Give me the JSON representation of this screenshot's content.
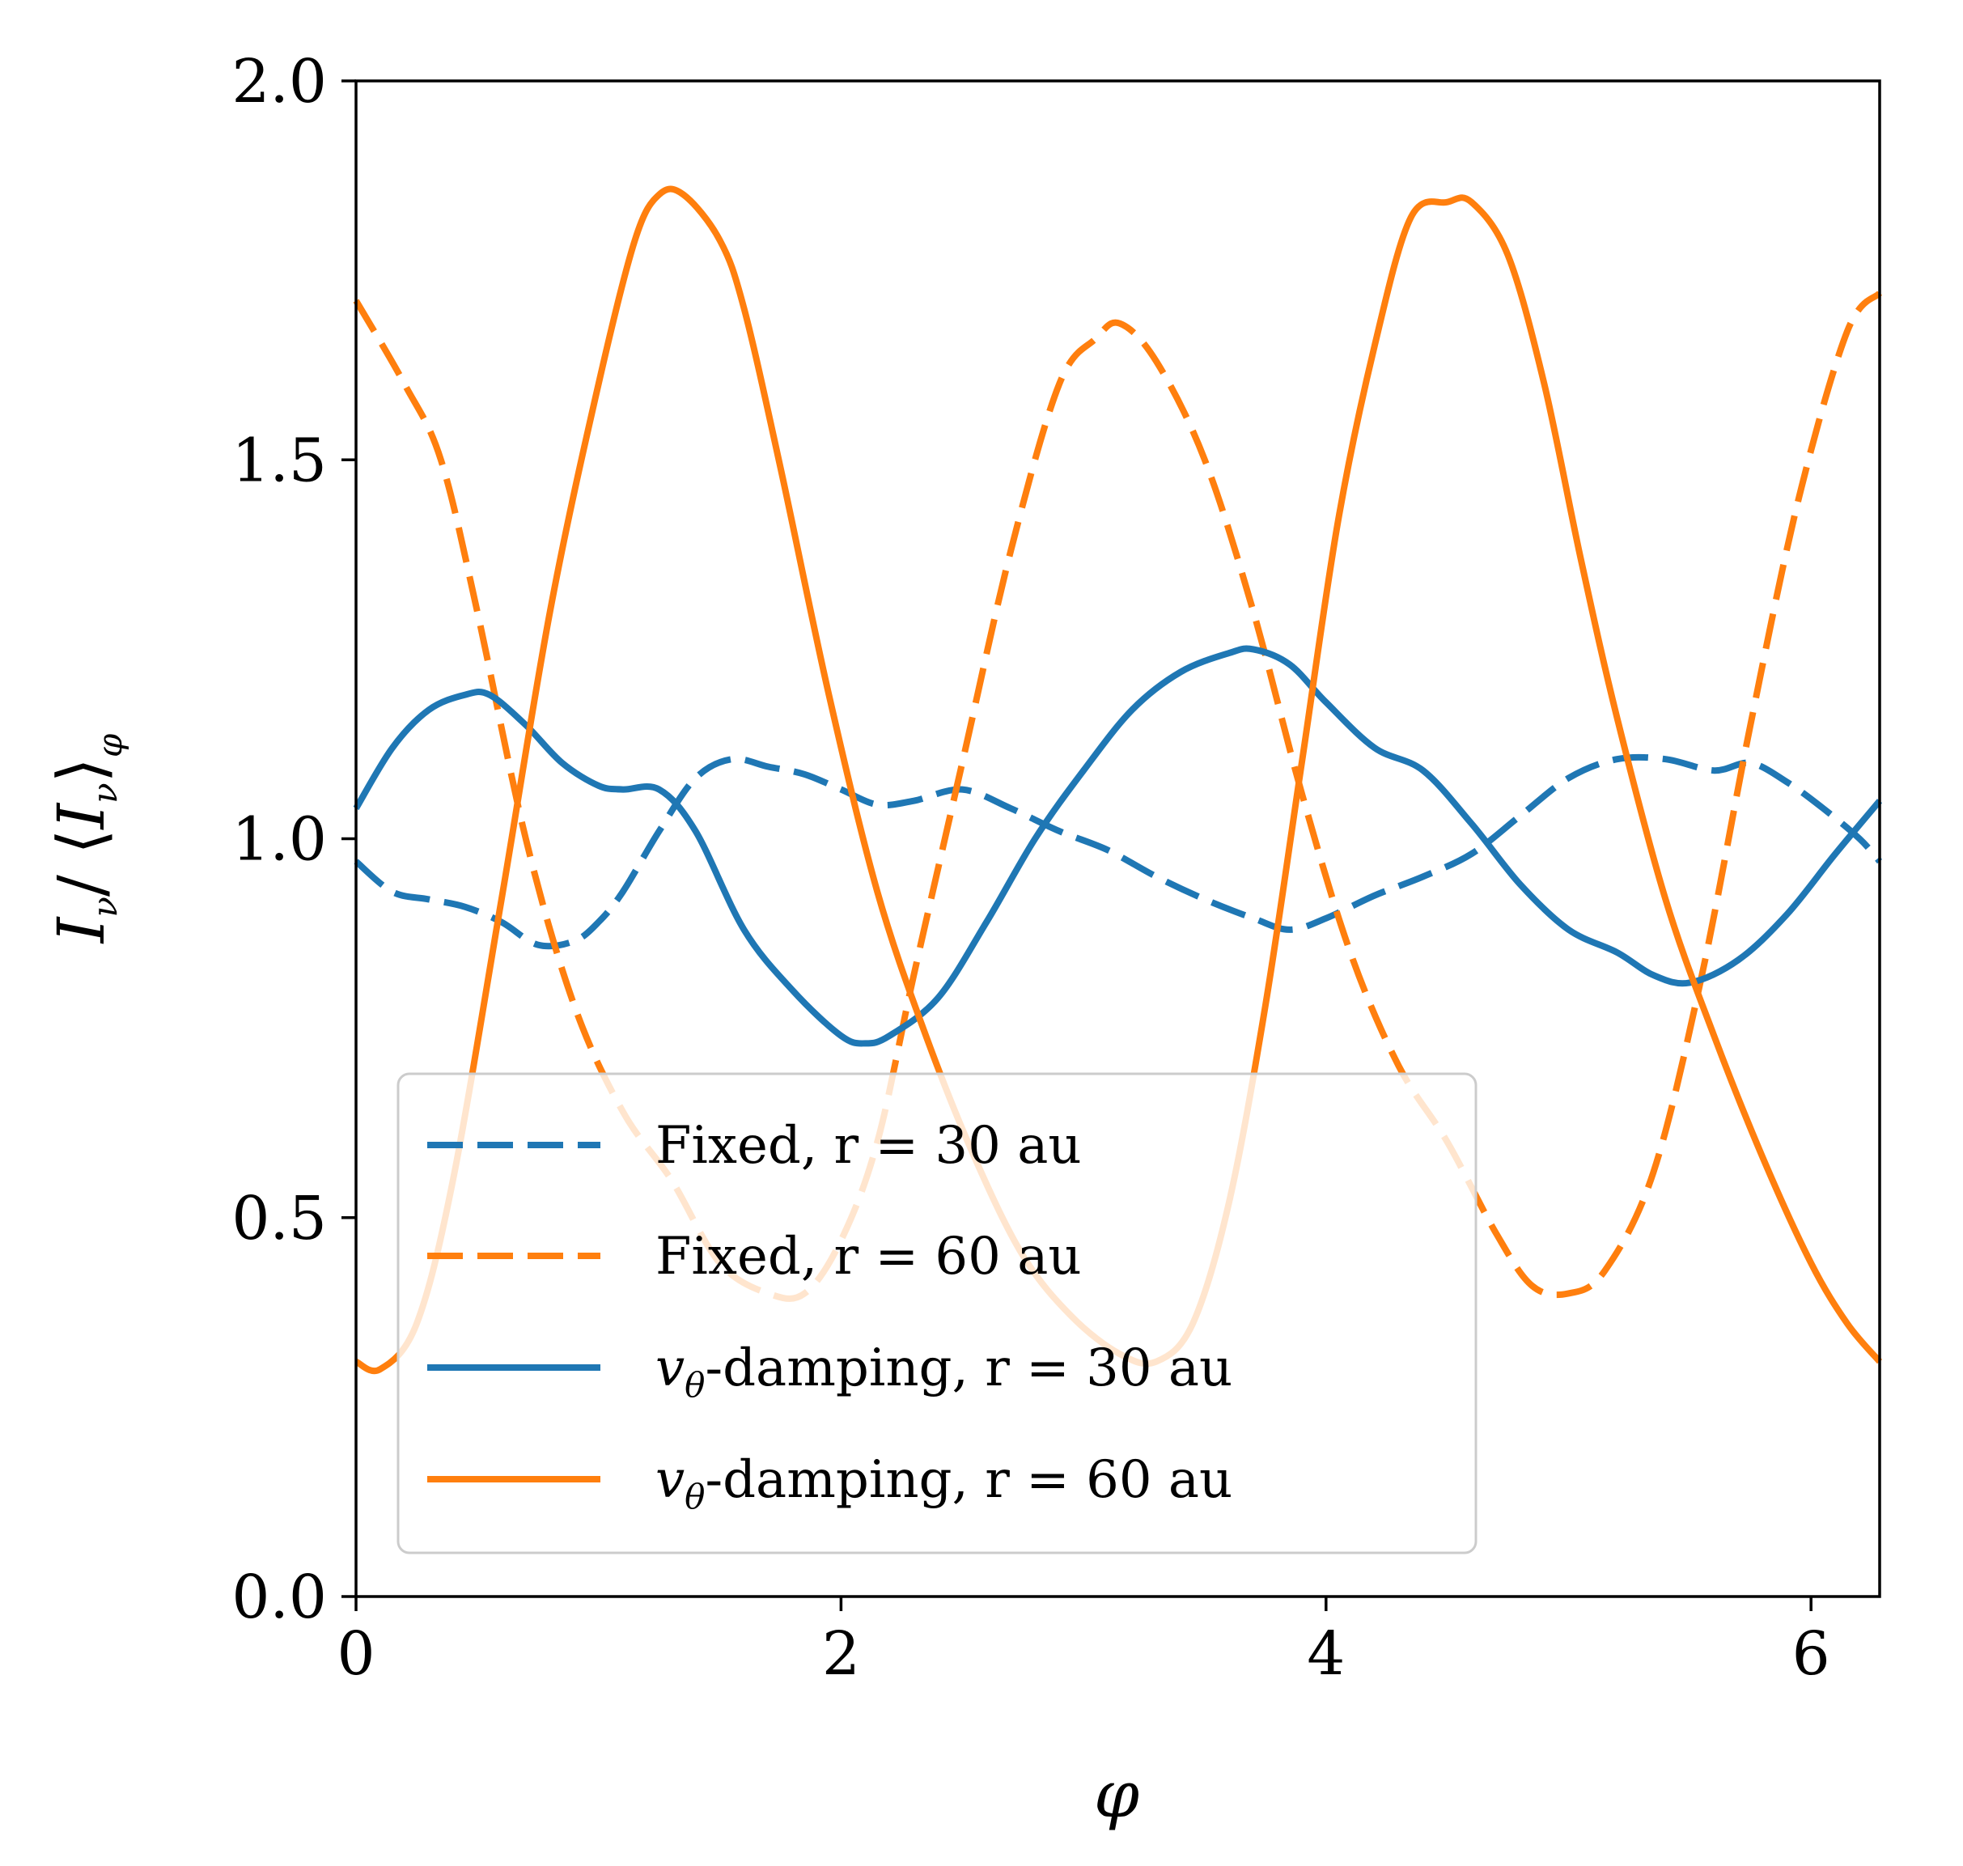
{
  "chart_data": {
    "type": "line",
    "title": "",
    "xlabel": "φ",
    "ylabel": {
      "main": "I",
      "sub": "ν",
      "mid": "/ ⟨",
      "main2": "I",
      "sub2": "ν",
      "close": "⟩",
      "sub3": "φ"
    },
    "xlim": [
      0,
      6.283
    ],
    "ylim": [
      0,
      2.0
    ],
    "xticks": [
      0,
      2,
      4,
      6
    ],
    "xtick_labels": [
      "0",
      "2",
      "4",
      "6"
    ],
    "yticks": [
      0,
      0.5,
      1.0,
      1.5,
      2.0
    ],
    "ytick_labels": [
      "0.0",
      "0.5",
      "1.0",
      "1.5",
      "2.0"
    ],
    "legend_position": "lower-left",
    "series": [
      {
        "name": "Fixed, r = 30 au",
        "legend": {
          "prefix": "Fixed, r = 30 au",
          "var": "",
          "sub": "",
          "suffix": ""
        },
        "color": "#1f77b4",
        "style": "dashed",
        "x": [
          0,
          0.15,
          0.3,
          0.45,
          0.6,
          0.75,
          0.9,
          1.0,
          1.1,
          1.25,
          1.4,
          1.55,
          1.7,
          1.85,
          2.0,
          2.15,
          2.3,
          2.5,
          2.7,
          2.9,
          3.1,
          3.3,
          3.5,
          3.7,
          3.85,
          4.0,
          4.2,
          4.4,
          4.6,
          4.8,
          5.0,
          5.2,
          5.4,
          5.6,
          5.75,
          5.9,
          6.05,
          6.2,
          6.283
        ],
        "y": [
          0.97,
          0.93,
          0.92,
          0.91,
          0.89,
          0.86,
          0.865,
          0.89,
          0.93,
          1.01,
          1.08,
          1.105,
          1.095,
          1.085,
          1.065,
          1.045,
          1.05,
          1.065,
          1.04,
          1.01,
          0.985,
          0.95,
          0.92,
          0.895,
          0.88,
          0.895,
          0.925,
          0.95,
          0.98,
          1.03,
          1.08,
          1.105,
          1.105,
          1.09,
          1.1,
          1.075,
          1.04,
          1.0,
          0.97
        ]
      },
      {
        "name": "Fixed, r = 60 au",
        "legend": {
          "prefix": "Fixed, r = 60 au",
          "var": "",
          "sub": "",
          "suffix": ""
        },
        "color": "#ff7f0e",
        "style": "dashed",
        "x": [
          0,
          0.2,
          0.35,
          0.5,
          0.7,
          0.9,
          1.1,
          1.3,
          1.5,
          1.7,
          1.85,
          2.0,
          2.15,
          2.3,
          2.5,
          2.7,
          2.9,
          3.05,
          3.15,
          3.3,
          3.5,
          3.7,
          3.9,
          4.1,
          4.3,
          4.5,
          4.7,
          4.85,
          5.0,
          5.15,
          5.35,
          5.55,
          5.75,
          5.95,
          6.15,
          6.283
        ],
        "y": [
          1.71,
          1.6,
          1.5,
          1.3,
          1.0,
          0.78,
          0.64,
          0.55,
          0.44,
          0.4,
          0.4,
          0.47,
          0.6,
          0.82,
          1.1,
          1.38,
          1.6,
          1.66,
          1.68,
          1.63,
          1.5,
          1.3,
          1.06,
          0.85,
          0.7,
          0.6,
          0.48,
          0.41,
          0.4,
          0.43,
          0.56,
          0.82,
          1.15,
          1.45,
          1.67,
          1.72
        ]
      },
      {
        "name": "vθ-damping, r = 30 au",
        "legend": {
          "prefix": "",
          "var": "v",
          "sub": "θ",
          "suffix": "-damping, r = 30 au"
        },
        "color": "#1f77b4",
        "style": "solid",
        "x": [
          0,
          0.15,
          0.3,
          0.45,
          0.55,
          0.7,
          0.85,
          1.0,
          1.1,
          1.25,
          1.4,
          1.6,
          1.8,
          2.0,
          2.1,
          2.2,
          2.4,
          2.6,
          2.8,
          3.0,
          3.2,
          3.4,
          3.6,
          3.7,
          3.85,
          4.0,
          4.2,
          4.4,
          4.6,
          4.8,
          5.0,
          5.2,
          5.35,
          5.5,
          5.7,
          5.9,
          6.1,
          6.283
        ],
        "y": [
          1.04,
          1.12,
          1.17,
          1.19,
          1.19,
          1.15,
          1.1,
          1.07,
          1.065,
          1.065,
          1.01,
          0.88,
          0.8,
          0.74,
          0.73,
          0.74,
          0.79,
          0.89,
          1.0,
          1.09,
          1.17,
          1.22,
          1.245,
          1.25,
          1.23,
          1.18,
          1.12,
          1.09,
          1.02,
          0.94,
          0.88,
          0.85,
          0.82,
          0.81,
          0.84,
          0.9,
          0.98,
          1.05
        ]
      },
      {
        "name": "vθ-damping, r = 60 au",
        "legend": {
          "prefix": "",
          "var": "v",
          "sub": "θ",
          "suffix": "-damping, r = 60 au"
        },
        "color": "#ff7f0e",
        "style": "solid",
        "x": [
          0,
          0.1,
          0.25,
          0.4,
          0.6,
          0.8,
          1.0,
          1.15,
          1.25,
          1.35,
          1.5,
          1.6,
          1.75,
          1.95,
          2.15,
          2.35,
          2.55,
          2.75,
          2.95,
          3.15,
          3.3,
          3.45,
          3.6,
          3.75,
          3.9,
          4.05,
          4.2,
          4.35,
          4.5,
          4.6,
          4.75,
          4.9,
          5.05,
          5.2,
          5.4,
          5.6,
          5.8,
          6.0,
          6.15,
          6.283
        ],
        "y": [
          0.31,
          0.3,
          0.36,
          0.55,
          0.92,
          1.3,
          1.6,
          1.79,
          1.85,
          1.85,
          1.79,
          1.7,
          1.49,
          1.19,
          0.93,
          0.74,
          0.58,
          0.45,
          0.37,
          0.32,
          0.31,
          0.36,
          0.52,
          0.78,
          1.1,
          1.42,
          1.65,
          1.82,
          1.84,
          1.84,
          1.77,
          1.6,
          1.37,
          1.16,
          0.92,
          0.74,
          0.58,
          0.44,
          0.36,
          0.31
        ]
      }
    ]
  }
}
